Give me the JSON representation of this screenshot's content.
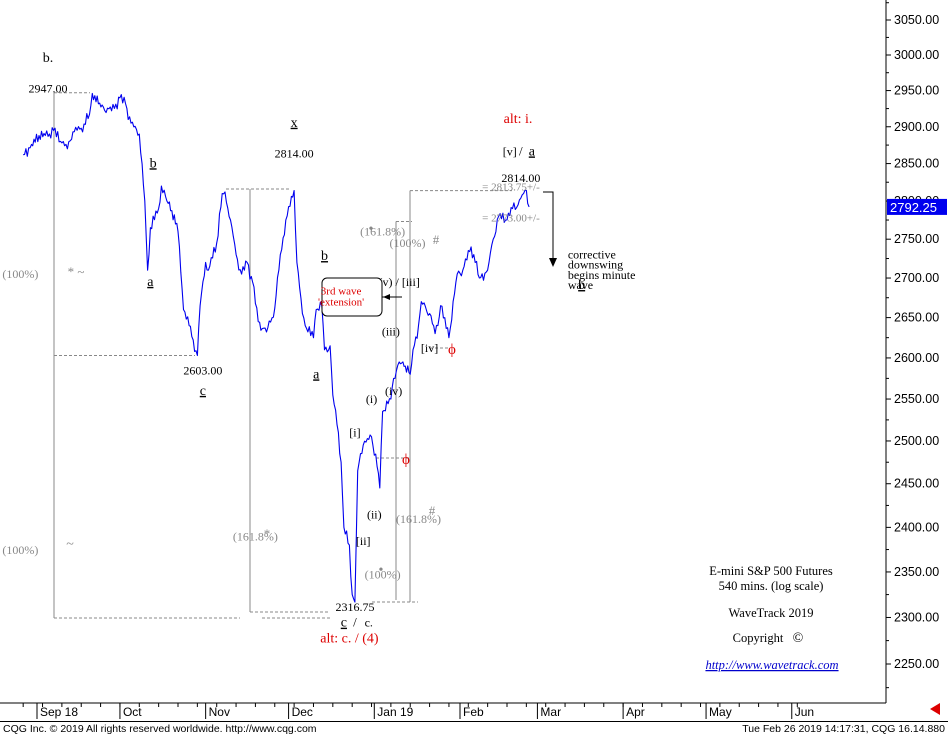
{
  "chart_data": {
    "type": "line",
    "title": "E-mini S&P 500 Futures",
    "subtitle": "540 mins. (log scale)",
    "y_scale": "log",
    "ylim": [
      2200,
      3080
    ],
    "y_ticks": [
      3050,
      3000,
      2950,
      2900,
      2850,
      2800,
      2750,
      2700,
      2650,
      2600,
      2550,
      2500,
      2450,
      2400,
      2350,
      2300,
      2250
    ],
    "y_tick_labels": [
      "3050.00",
      "3000.00",
      "2950.00",
      "2900.00",
      "2850.00",
      "2800.00",
      "2750.00",
      "2700.00",
      "2650.00",
      "2600.00",
      "2550.00",
      "2500.00",
      "2450.00",
      "2400.00",
      "2350.00",
      "2300.00",
      "2250.00"
    ],
    "x_month_labels": [
      "Sep 18",
      "Oct",
      "Nov",
      "Dec",
      "Jan 19",
      "Feb",
      "Mar",
      "Apr",
      "May",
      "Jun"
    ],
    "grid": false,
    "series": [
      {
        "color": "#0000ee",
        "points": [
          [
            "2018-08-27",
            2862
          ],
          [
            "2018-08-30",
            2876
          ],
          [
            "2018-09-04",
            2888
          ],
          [
            "2018-09-07",
            2895
          ],
          [
            "2018-09-10",
            2878
          ],
          [
            "2018-09-12",
            2870
          ],
          [
            "2018-09-14",
            2893
          ],
          [
            "2018-09-17",
            2898
          ],
          [
            "2018-09-20",
            2917
          ],
          [
            "2018-09-21",
            2946
          ],
          [
            "2018-09-25",
            2927
          ],
          [
            "2018-09-28",
            2922
          ],
          [
            "2018-10-01",
            2940
          ],
          [
            "2018-10-03",
            2932
          ],
          [
            "2018-10-05",
            2905
          ],
          [
            "2018-10-08",
            2890
          ],
          [
            "2018-10-10",
            2800
          ],
          [
            "2018-10-11",
            2710
          ],
          [
            "2018-10-12",
            2765
          ],
          [
            "2018-10-15",
            2790
          ],
          [
            "2018-10-16",
            2820
          ],
          [
            "2018-10-18",
            2800
          ],
          [
            "2018-10-22",
            2760
          ],
          [
            "2018-10-24",
            2660
          ],
          [
            "2018-10-26",
            2640
          ],
          [
            "2018-10-29",
            2603
          ],
          [
            "2018-10-30",
            2665
          ],
          [
            "2018-11-01",
            2720
          ],
          [
            "2018-11-02",
            2710
          ],
          [
            "2018-11-05",
            2745
          ],
          [
            "2018-11-07",
            2810
          ],
          [
            "2018-11-08",
            2812
          ],
          [
            "2018-11-10",
            2775
          ],
          [
            "2018-11-12",
            2730
          ],
          [
            "2018-11-14",
            2705
          ],
          [
            "2018-11-16",
            2720
          ],
          [
            "2018-11-18",
            2695
          ],
          [
            "2018-11-20",
            2645
          ],
          [
            "2018-11-23",
            2632
          ],
          [
            "2018-11-26",
            2662
          ],
          [
            "2018-11-28",
            2730
          ],
          [
            "2018-11-30",
            2775
          ],
          [
            "2018-12-03",
            2814
          ],
          [
            "2018-12-04",
            2720
          ],
          [
            "2018-12-06",
            2655
          ],
          [
            "2018-12-07",
            2640
          ],
          [
            "2018-12-10",
            2625
          ],
          [
            "2018-12-11",
            2660
          ],
          [
            "2018-12-13",
            2665
          ],
          [
            "2018-12-14",
            2610
          ],
          [
            "2018-12-16",
            2615
          ],
          [
            "2018-12-17",
            2555
          ],
          [
            "2018-12-19",
            2510
          ],
          [
            "2018-12-20",
            2475
          ],
          [
            "2018-12-21",
            2400
          ],
          [
            "2018-12-23",
            2380
          ],
          [
            "2018-12-24",
            2325
          ],
          [
            "2018-12-25",
            2316.75
          ],
          [
            "2018-12-26",
            2465
          ],
          [
            "2018-12-27",
            2485
          ],
          [
            "2018-12-28",
            2495
          ],
          [
            "2018-12-31",
            2505
          ],
          [
            "2019-01-02",
            2470
          ],
          [
            "2019-01-03",
            2445
          ],
          [
            "2019-01-04",
            2535
          ],
          [
            "2019-01-07",
            2550
          ],
          [
            "2019-01-08",
            2575
          ],
          [
            "2019-01-10",
            2595
          ],
          [
            "2019-01-14",
            2580
          ],
          [
            "2019-01-15",
            2610
          ],
          [
            "2019-01-17",
            2640
          ],
          [
            "2019-01-18",
            2670
          ],
          [
            "2019-01-21",
            2655
          ],
          [
            "2019-01-23",
            2630
          ],
          [
            "2019-01-24",
            2640
          ],
          [
            "2019-01-25",
            2665
          ],
          [
            "2019-01-28",
            2625
          ],
          [
            "2019-01-30",
            2680
          ],
          [
            "2019-01-31",
            2705
          ],
          [
            "2019-02-02",
            2710
          ],
          [
            "2019-02-05",
            2740
          ],
          [
            "2019-02-06",
            2730
          ],
          [
            "2019-02-08",
            2700
          ],
          [
            "2019-02-11",
            2710
          ],
          [
            "2019-02-13",
            2750
          ],
          [
            "2019-02-15",
            2780
          ],
          [
            "2019-02-18",
            2775
          ],
          [
            "2019-02-20",
            2790
          ],
          [
            "2019-02-22",
            2795
          ],
          [
            "2019-02-24",
            2810
          ],
          [
            "2019-02-25",
            2814
          ],
          [
            "2019-02-26",
            2792.25
          ]
        ]
      }
    ],
    "last_value": "2792.25",
    "annotations": [
      {
        "text": "b.",
        "x": "2018-09-05",
        "y": 2990
      },
      {
        "text": "2947.00",
        "x": "2018-09-05",
        "y": 2947
      },
      {
        "text": "b",
        "x": "2018-10-13",
        "y": 2845
      },
      {
        "text": "a",
        "x": "2018-10-12",
        "y": 2690
      },
      {
        "text": "2603.00",
        "x": "2018-10-31",
        "y": 2580
      },
      {
        "text": "c",
        "x": "2018-10-31",
        "y": 2555
      },
      {
        "text": "x",
        "x": "2018-12-03",
        "y": 2900
      },
      {
        "text": "2814.00",
        "x": "2018-12-03",
        "y": 2858
      },
      {
        "text": "b",
        "x": "2018-12-14",
        "y": 2723
      },
      {
        "text": "a",
        "x": "2018-12-11",
        "y": 2575
      },
      {
        "text": "(i)",
        "x": "2018-12-31",
        "y": 2545
      },
      {
        "text": "[i]",
        "x": "2018-12-25",
        "y": 2505
      },
      {
        "text": "(ii)",
        "x": "2019-01-01",
        "y": 2410
      },
      {
        "text": "[ii]",
        "x": "2018-12-28",
        "y": 2380
      },
      {
        "text": "(iii)",
        "x": "2019-01-07",
        "y": 2628
      },
      {
        "text": "(iv)",
        "x": "2019-01-08",
        "y": 2555
      },
      {
        "text": "[iv]",
        "x": "2019-01-21",
        "y": 2607
      },
      {
        "text": "[v]",
        "x": "2019-02-19",
        "y": 2861
      },
      {
        "text": "a",
        "x": "2019-02-27",
        "y": 2861
      },
      {
        "text": "2814.00",
        "x": "2019-02-23",
        "y": 2825
      },
      {
        "text": "2316.75",
        "x": "2018-12-25",
        "y": 2307
      },
      {
        "text": "c",
        "x": "2018-12-21",
        "y": 2290
      },
      {
        "text": "c.",
        "x": "2018-12-30",
        "y": 2290
      },
      {
        "text": "alt: i.",
        "x": "2019-02-22",
        "y": 2905
      },
      {
        "text": "alt: c. / (4)",
        "x": "2018-12-23",
        "y": 2273
      },
      {
        "text": "corrective",
        "x": "2019-03-12",
        "y": 2725
      },
      {
        "text": "downswing",
        "x": "2019-03-12",
        "y": 2712
      },
      {
        "text": "begins minute",
        "x": "2019-03-12",
        "y": 2699
      },
      {
        "text": "wave",
        "x": "2019-03-12",
        "y": 2686
      },
      {
        "text": "b",
        "x": "2019-03-17",
        "y": 2686
      },
      {
        "text": "(100%)",
        "x": "2018-08-26",
        "y": 2700
      },
      {
        "text": "(100%)",
        "x": "2018-08-26",
        "y": 2370
      },
      {
        "text": "(161.8%)",
        "x": "2018-11-19",
        "y": 2385
      },
      {
        "text": "(161.8%)",
        "x": "2019-01-04",
        "y": 2755
      },
      {
        "text": "(100%)",
        "x": "2019-01-13",
        "y": 2740
      },
      {
        "text": "(161.8%)",
        "x": "2019-01-17",
        "y": 2405
      },
      {
        "text": "(100%)",
        "x": "2019-01-04",
        "y": 2343
      },
      {
        "text": "= 2813.75+/-",
        "x": "2019-02-09",
        "y": 2814
      },
      {
        "text": "= 2773.00+/-",
        "x": "2019-02-09",
        "y": 2773
      },
      {
        "text": "(v) / [iii]",
        "x": "2019-01-10",
        "y": 2690
      },
      {
        "text": "3rd wave",
        "x": "2018-12-20",
        "y": 2679
      },
      {
        "text": "'extension'",
        "x": "2018-12-20",
        "y": 2665
      }
    ]
  },
  "labels": {
    "title": "E-mini S&P 500 Futures",
    "subtitle": "540 mins. (log scale)",
    "brand": "WaveTrack 2019",
    "copyright": "Copyright",
    "copyright_symbol": "©",
    "url": "http://www.wavetrack.com",
    "slash": "/"
  },
  "symbols": {
    "star": "*",
    "tilde": "~",
    "hash": "#",
    "phi": "ϕ",
    "dot": "•"
  },
  "footer": {
    "left": "CQG Inc. © 2019 All rights reserved worldwide. http://www.cqg.com",
    "right": "Tue Feb 26 2019 14:17:31, CQG 16.14.880"
  },
  "colors": {
    "price_line": "#0000ee",
    "alt_count": "#dd0000",
    "fib_lines": "#888888",
    "last_price_bg": "#0000ee",
    "text": "#000000"
  }
}
